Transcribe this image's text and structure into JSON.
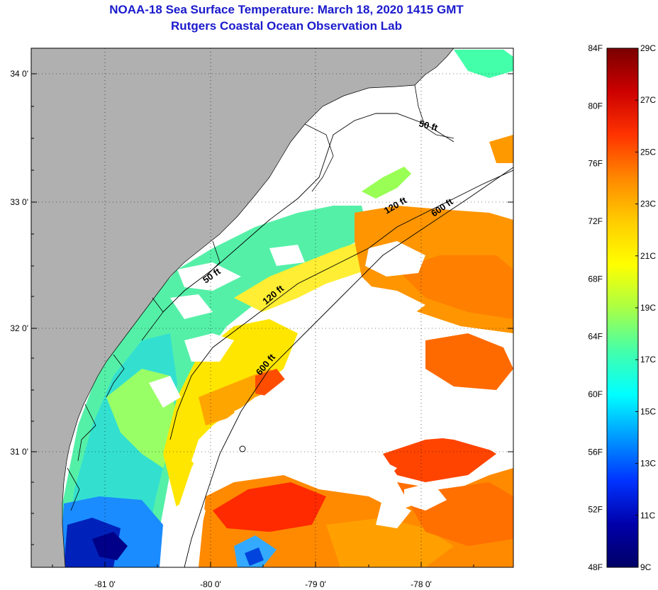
{
  "header": {
    "title": "NOAA-18 Sea Surface Temperature:  March 18, 2020 1415 GMT",
    "subtitle": "Rutgers Coastal Ocean Observation Lab"
  },
  "map": {
    "lon_ticks": [
      "-81 0'",
      "-80 0'",
      "-79 0'",
      "-78 0'"
    ],
    "lat_ticks": [
      "34 0'",
      "33 0'",
      "32 0'",
      "31 0'"
    ],
    "lon_range": [
      -81.6,
      -77.05
    ],
    "lat_range": [
      30.15,
      34.22
    ],
    "contours": [
      {
        "label": "50 ft"
      },
      {
        "label": "50 ft"
      },
      {
        "label": "120 ft"
      },
      {
        "label": "120 ft"
      },
      {
        "label": "600 ft"
      },
      {
        "label": "600 ft"
      }
    ],
    "colors": {
      "land": "#b0b0b0",
      "cloud_nodata": "#ffffff",
      "coastline": "#000000",
      "grid": "#000000"
    }
  },
  "colorbar": {
    "fahrenheit_labels": [
      "84F",
      "80F",
      "76F",
      "72F",
      "68F",
      "64F",
      "60F",
      "56F",
      "52F",
      "48F"
    ],
    "celsius_labels": [
      "29C",
      "27C",
      "25C",
      "23C",
      "21C",
      "19C",
      "17C",
      "15C",
      "13C",
      "11C",
      "9C"
    ],
    "f_range": [
      48,
      84
    ],
    "c_range": [
      9,
      29
    ],
    "gradient_stops": [
      "#7a0000",
      "#cc0000",
      "#ff3300",
      "#ff8800",
      "#ffcc00",
      "#ffff00",
      "#aaff44",
      "#44ffaa",
      "#00ffff",
      "#0099ff",
      "#0033ff",
      "#0000aa",
      "#000066"
    ]
  }
}
